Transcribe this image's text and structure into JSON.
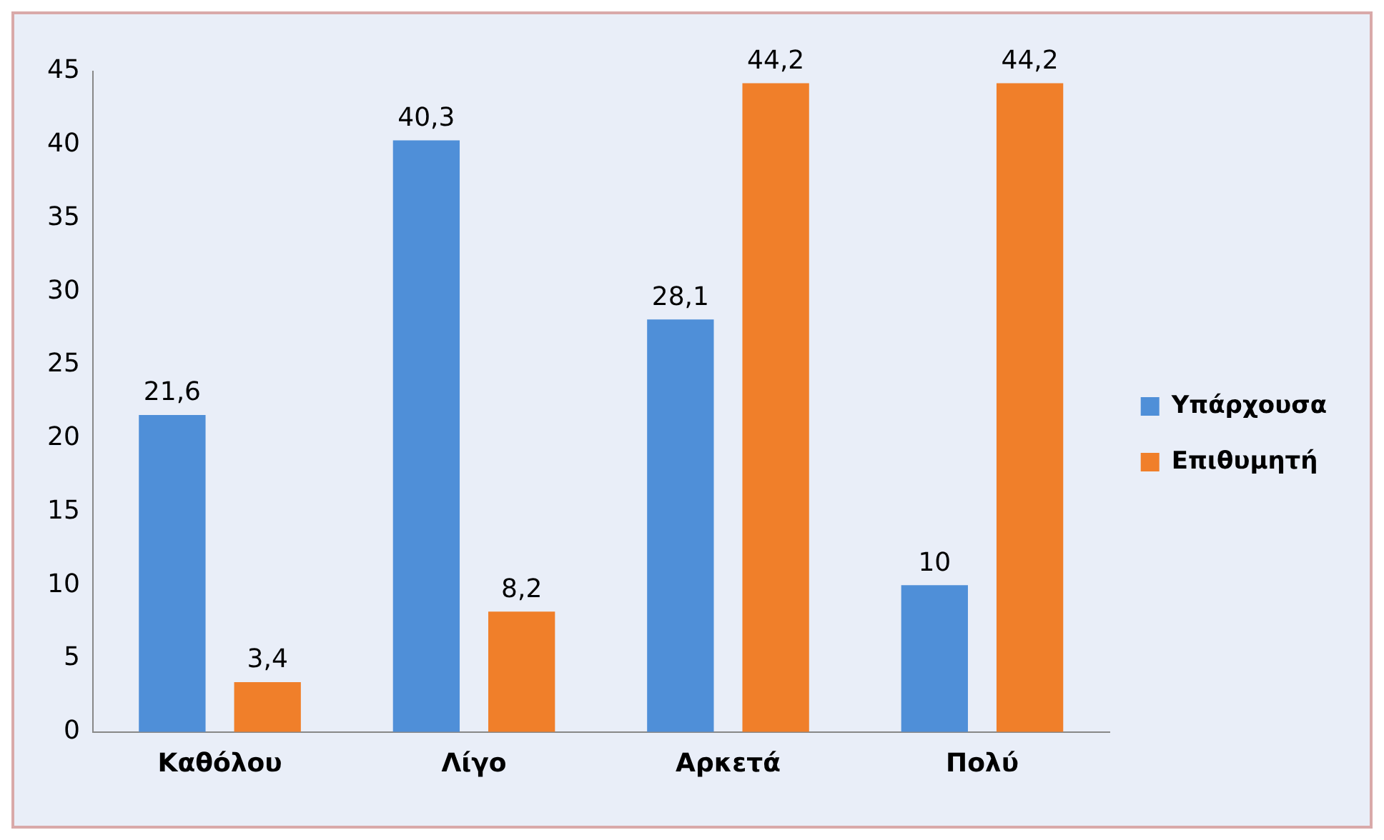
{
  "chart_data": {
    "type": "bar",
    "categories": [
      "Καθόλου",
      "Λίγο",
      "Αρκετά",
      "Πολύ"
    ],
    "series": [
      {
        "name": "Υπάρχουσα",
        "color": "#4f8fd8",
        "values": [
          21.6,
          40.3,
          28.1,
          10
        ],
        "value_labels": [
          "21,6",
          "40,3",
          "28,1",
          "10"
        ]
      },
      {
        "name": "Επιθυμητή",
        "color": "#f07f2a",
        "values": [
          3.4,
          8.2,
          44.2,
          44.2
        ],
        "value_labels": [
          "3,4",
          "8,2",
          "44,2",
          "44,2"
        ]
      }
    ],
    "ylim": [
      0,
      45
    ],
    "yticks": [
      0,
      5,
      10,
      15,
      20,
      25,
      30,
      35,
      40,
      45
    ],
    "grid": false,
    "legend": "right"
  }
}
